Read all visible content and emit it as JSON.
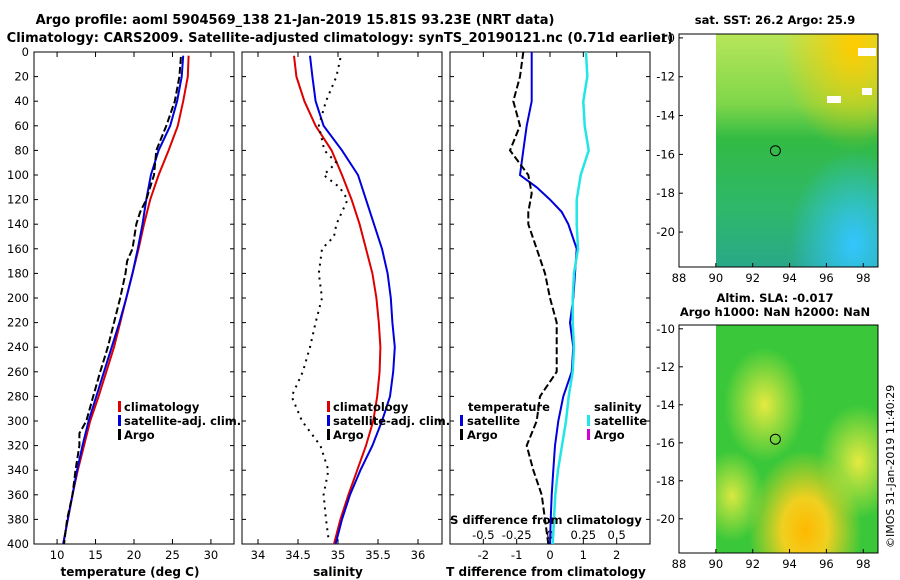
{
  "header": {
    "line1": "Argo profile: aoml 5904569_138 21-Jan-2019 15.81S 93.23E (NRT data)",
    "line2": "Climatology: CARS2009. Satellite-adjusted climatology: synTS_20190121.nc (0.71d earlier)"
  },
  "colors": {
    "clim": "#dd0000",
    "sat": "#0000dd",
    "argo": "#000000",
    "cyan": "#22e6e6",
    "magenta": "#d400d4"
  },
  "chart_data": [
    {
      "type": "line",
      "title": "Temperature profile",
      "xlabel": "temperature (deg C)",
      "ylabel": "",
      "xlim": [
        7,
        33
      ],
      "ylim": [
        0,
        400
      ],
      "x_ticks": [
        "10",
        "15",
        "20",
        "25",
        "30"
      ],
      "y_ticks": [
        "0",
        "20",
        "40",
        "60",
        "80",
        "100",
        "120",
        "140",
        "160",
        "180",
        "200",
        "220",
        "240",
        "260",
        "280",
        "300",
        "320",
        "340",
        "360",
        "380",
        "400"
      ],
      "legend": [
        "climatology",
        "satellite-adj. clim.",
        "Argo"
      ],
      "series": [
        {
          "name": "climatology",
          "style": "clim",
          "depth": [
            3,
            20,
            40,
            60,
            80,
            100,
            120,
            140,
            160,
            180,
            200,
            220,
            240,
            260,
            280,
            300,
            320,
            340,
            360,
            380,
            400
          ],
          "values": [
            27.1,
            27.0,
            26.4,
            25.7,
            24.5,
            23.2,
            22.1,
            21.3,
            20.6,
            19.8,
            19.0,
            18.2,
            17.4,
            16.4,
            15.4,
            14.3,
            13.5,
            12.7,
            12.0,
            11.4,
            10.8
          ]
        },
        {
          "name": "satellite-adj. clim.",
          "style": "sat",
          "depth": [
            3,
            20,
            40,
            60,
            80,
            100,
            120,
            140,
            160,
            180,
            200,
            220,
            240,
            260,
            280,
            300,
            320,
            340,
            360,
            380,
            400
          ],
          "values": [
            26.4,
            26.2,
            25.6,
            24.7,
            23.2,
            22.2,
            21.6,
            21.1,
            20.5,
            19.8,
            19.0,
            18.1,
            17.1,
            16.1,
            15.1,
            14.1,
            13.3,
            12.6,
            12.0,
            11.4,
            10.8
          ]
        },
        {
          "name": "Argo",
          "style": "argo",
          "depth": [
            4,
            20,
            40,
            60,
            80,
            100,
            120,
            130,
            140,
            160,
            170,
            180,
            200,
            220,
            240,
            260,
            280,
            300,
            310,
            320,
            340,
            360,
            380,
            400
          ],
          "values": [
            26.1,
            25.9,
            25.3,
            24.2,
            22.9,
            22.6,
            21.6,
            20.8,
            20.3,
            19.8,
            19.1,
            18.9,
            18.2,
            17.4,
            16.6,
            15.6,
            14.7,
            13.8,
            12.9,
            12.9,
            12.4,
            12.0,
            11.3,
            10.9
          ]
        }
      ]
    },
    {
      "type": "line",
      "title": "Salinity profile",
      "xlabel": "salinity",
      "ylabel": "",
      "xlim": [
        33.8,
        36.3
      ],
      "ylim": [
        0,
        400
      ],
      "x_ticks": [
        "34",
        "34.5",
        "35",
        "35.5",
        "36"
      ],
      "legend": [
        "climatology",
        "satellite-adj. clim.",
        "Argo"
      ],
      "series": [
        {
          "name": "climatology",
          "style": "clim",
          "depth": [
            3,
            20,
            40,
            60,
            80,
            100,
            120,
            140,
            160,
            180,
            200,
            220,
            240,
            260,
            280,
            300,
            320,
            340,
            360,
            380,
            400
          ],
          "values": [
            34.45,
            34.48,
            34.58,
            34.72,
            34.92,
            35.05,
            35.17,
            35.27,
            35.35,
            35.43,
            35.48,
            35.51,
            35.53,
            35.52,
            35.49,
            35.44,
            35.35,
            35.24,
            35.13,
            35.03,
            34.95
          ]
        },
        {
          "name": "satellite-adj. clim.",
          "style": "sat",
          "depth": [
            3,
            20,
            40,
            60,
            80,
            100,
            120,
            140,
            160,
            180,
            200,
            220,
            240,
            260,
            280,
            300,
            320,
            340,
            360,
            380,
            400
          ],
          "values": [
            34.65,
            34.68,
            34.72,
            34.82,
            35.05,
            35.25,
            35.35,
            35.45,
            35.55,
            35.62,
            35.66,
            35.68,
            35.71,
            35.69,
            35.65,
            35.55,
            35.43,
            35.28,
            35.15,
            35.05,
            34.97
          ]
        },
        {
          "name": "Argo",
          "style": "argo",
          "depth": [
            5,
            20,
            40,
            60,
            80,
            90,
            100,
            110,
            120,
            140,
            150,
            160,
            180,
            200,
            220,
            240,
            260,
            280,
            300,
            320,
            340,
            360,
            380,
            395
          ],
          "values": [
            35.03,
            34.98,
            34.85,
            34.76,
            34.83,
            34.98,
            34.82,
            35.02,
            35.12,
            34.98,
            34.95,
            34.8,
            34.76,
            34.8,
            34.72,
            34.65,
            34.56,
            34.42,
            34.55,
            34.78,
            34.88,
            34.82,
            34.85,
            34.88
          ]
        }
      ]
    },
    {
      "type": "line",
      "title": "Difference from climatology",
      "xlabel": "T difference from climatology",
      "x2label": "S difference from climatology",
      "xlim": [
        -3.0,
        3.0
      ],
      "x2lim": [
        -0.75,
        0.75
      ],
      "ylim": [
        0,
        400
      ],
      "x_ticks": [
        "-2",
        "-1",
        "0",
        "1",
        "2"
      ],
      "x2_ticks": [
        "-0.5",
        "-0.25",
        "0",
        "0.25",
        "0.5"
      ],
      "legend_temperature_title": "temperature",
      "legend_salinity_title": "salinity",
      "legend_temperature": [
        "satellite",
        "Argo"
      ],
      "legend_salinity": [
        "satellite",
        "Argo"
      ],
      "series": [
        {
          "name": "temperature satellite",
          "style": "sat",
          "axis": "T",
          "depth": [
            0,
            20,
            40,
            60,
            80,
            100,
            110,
            120,
            130,
            140,
            160,
            180,
            200,
            220,
            240,
            260,
            280,
            300,
            320,
            340,
            360,
            380,
            400
          ],
          "values": [
            -0.55,
            -0.55,
            -0.55,
            -0.7,
            -0.8,
            -0.9,
            -0.4,
            0.0,
            0.35,
            0.55,
            0.8,
            0.75,
            0.7,
            0.6,
            0.7,
            0.65,
            0.4,
            0.25,
            0.15,
            0.1,
            0.05,
            0.02,
            0.0
          ]
        },
        {
          "name": "temperature Argo",
          "style": "argo",
          "axis": "T",
          "depth": [
            0,
            20,
            40,
            60,
            80,
            100,
            115,
            130,
            140,
            160,
            180,
            200,
            220,
            240,
            260,
            280,
            300,
            320,
            340,
            360,
            380,
            400
          ],
          "values": [
            -0.8,
            -0.9,
            -1.1,
            -0.9,
            -1.2,
            -0.65,
            -0.55,
            -0.65,
            -0.65,
            -0.4,
            -0.15,
            0.0,
            0.2,
            0.2,
            0.2,
            -0.3,
            -0.4,
            -0.7,
            -0.5,
            -0.25,
            -0.15,
            -0.05
          ]
        },
        {
          "name": "salinity satellite",
          "style": "cyan",
          "axis": "S",
          "depth": [
            0,
            20,
            40,
            60,
            80,
            100,
            120,
            140,
            160,
            180,
            200,
            220,
            240,
            260,
            280,
            300,
            320,
            340,
            360,
            380,
            400
          ],
          "values": [
            0.27,
            0.28,
            0.25,
            0.26,
            0.29,
            0.23,
            0.2,
            0.2,
            0.21,
            0.18,
            0.17,
            0.17,
            0.18,
            0.17,
            0.14,
            0.12,
            0.09,
            0.06,
            0.04,
            0.03,
            0.02
          ]
        }
      ]
    },
    {
      "type": "heatmap",
      "title": "sat. SST: 26.2 Argo: 25.9",
      "x_ticks": [
        "88",
        "90",
        "92",
        "94",
        "96",
        "98"
      ],
      "y_ticks": [
        "-10",
        "-12",
        "-14",
        "-16",
        "-18",
        "-20"
      ],
      "xlim": [
        88,
        98.8
      ],
      "ylim": [
        -21.8,
        -9.8
      ],
      "data_extent": [
        90,
        98.8
      ],
      "marker": {
        "lon": 93.23,
        "lat": -15.81
      }
    },
    {
      "type": "heatmap",
      "title": "Altim. SLA: -0.017",
      "subtitle": "Argo h1000: NaN h2000: NaN",
      "x_ticks": [
        "88",
        "90",
        "92",
        "94",
        "96",
        "98"
      ],
      "y_ticks": [
        "-10",
        "-12",
        "-14",
        "-16",
        "-18",
        "-20"
      ],
      "xlim": [
        88,
        98.8
      ],
      "ylim": [
        -21.8,
        -9.8
      ],
      "data_extent": [
        90,
        98.8
      ],
      "marker": {
        "lon": 93.23,
        "lat": -15.81
      }
    }
  ],
  "footer": {
    "credit": "©IMOS 31-Jan-2019 11:40:29"
  }
}
